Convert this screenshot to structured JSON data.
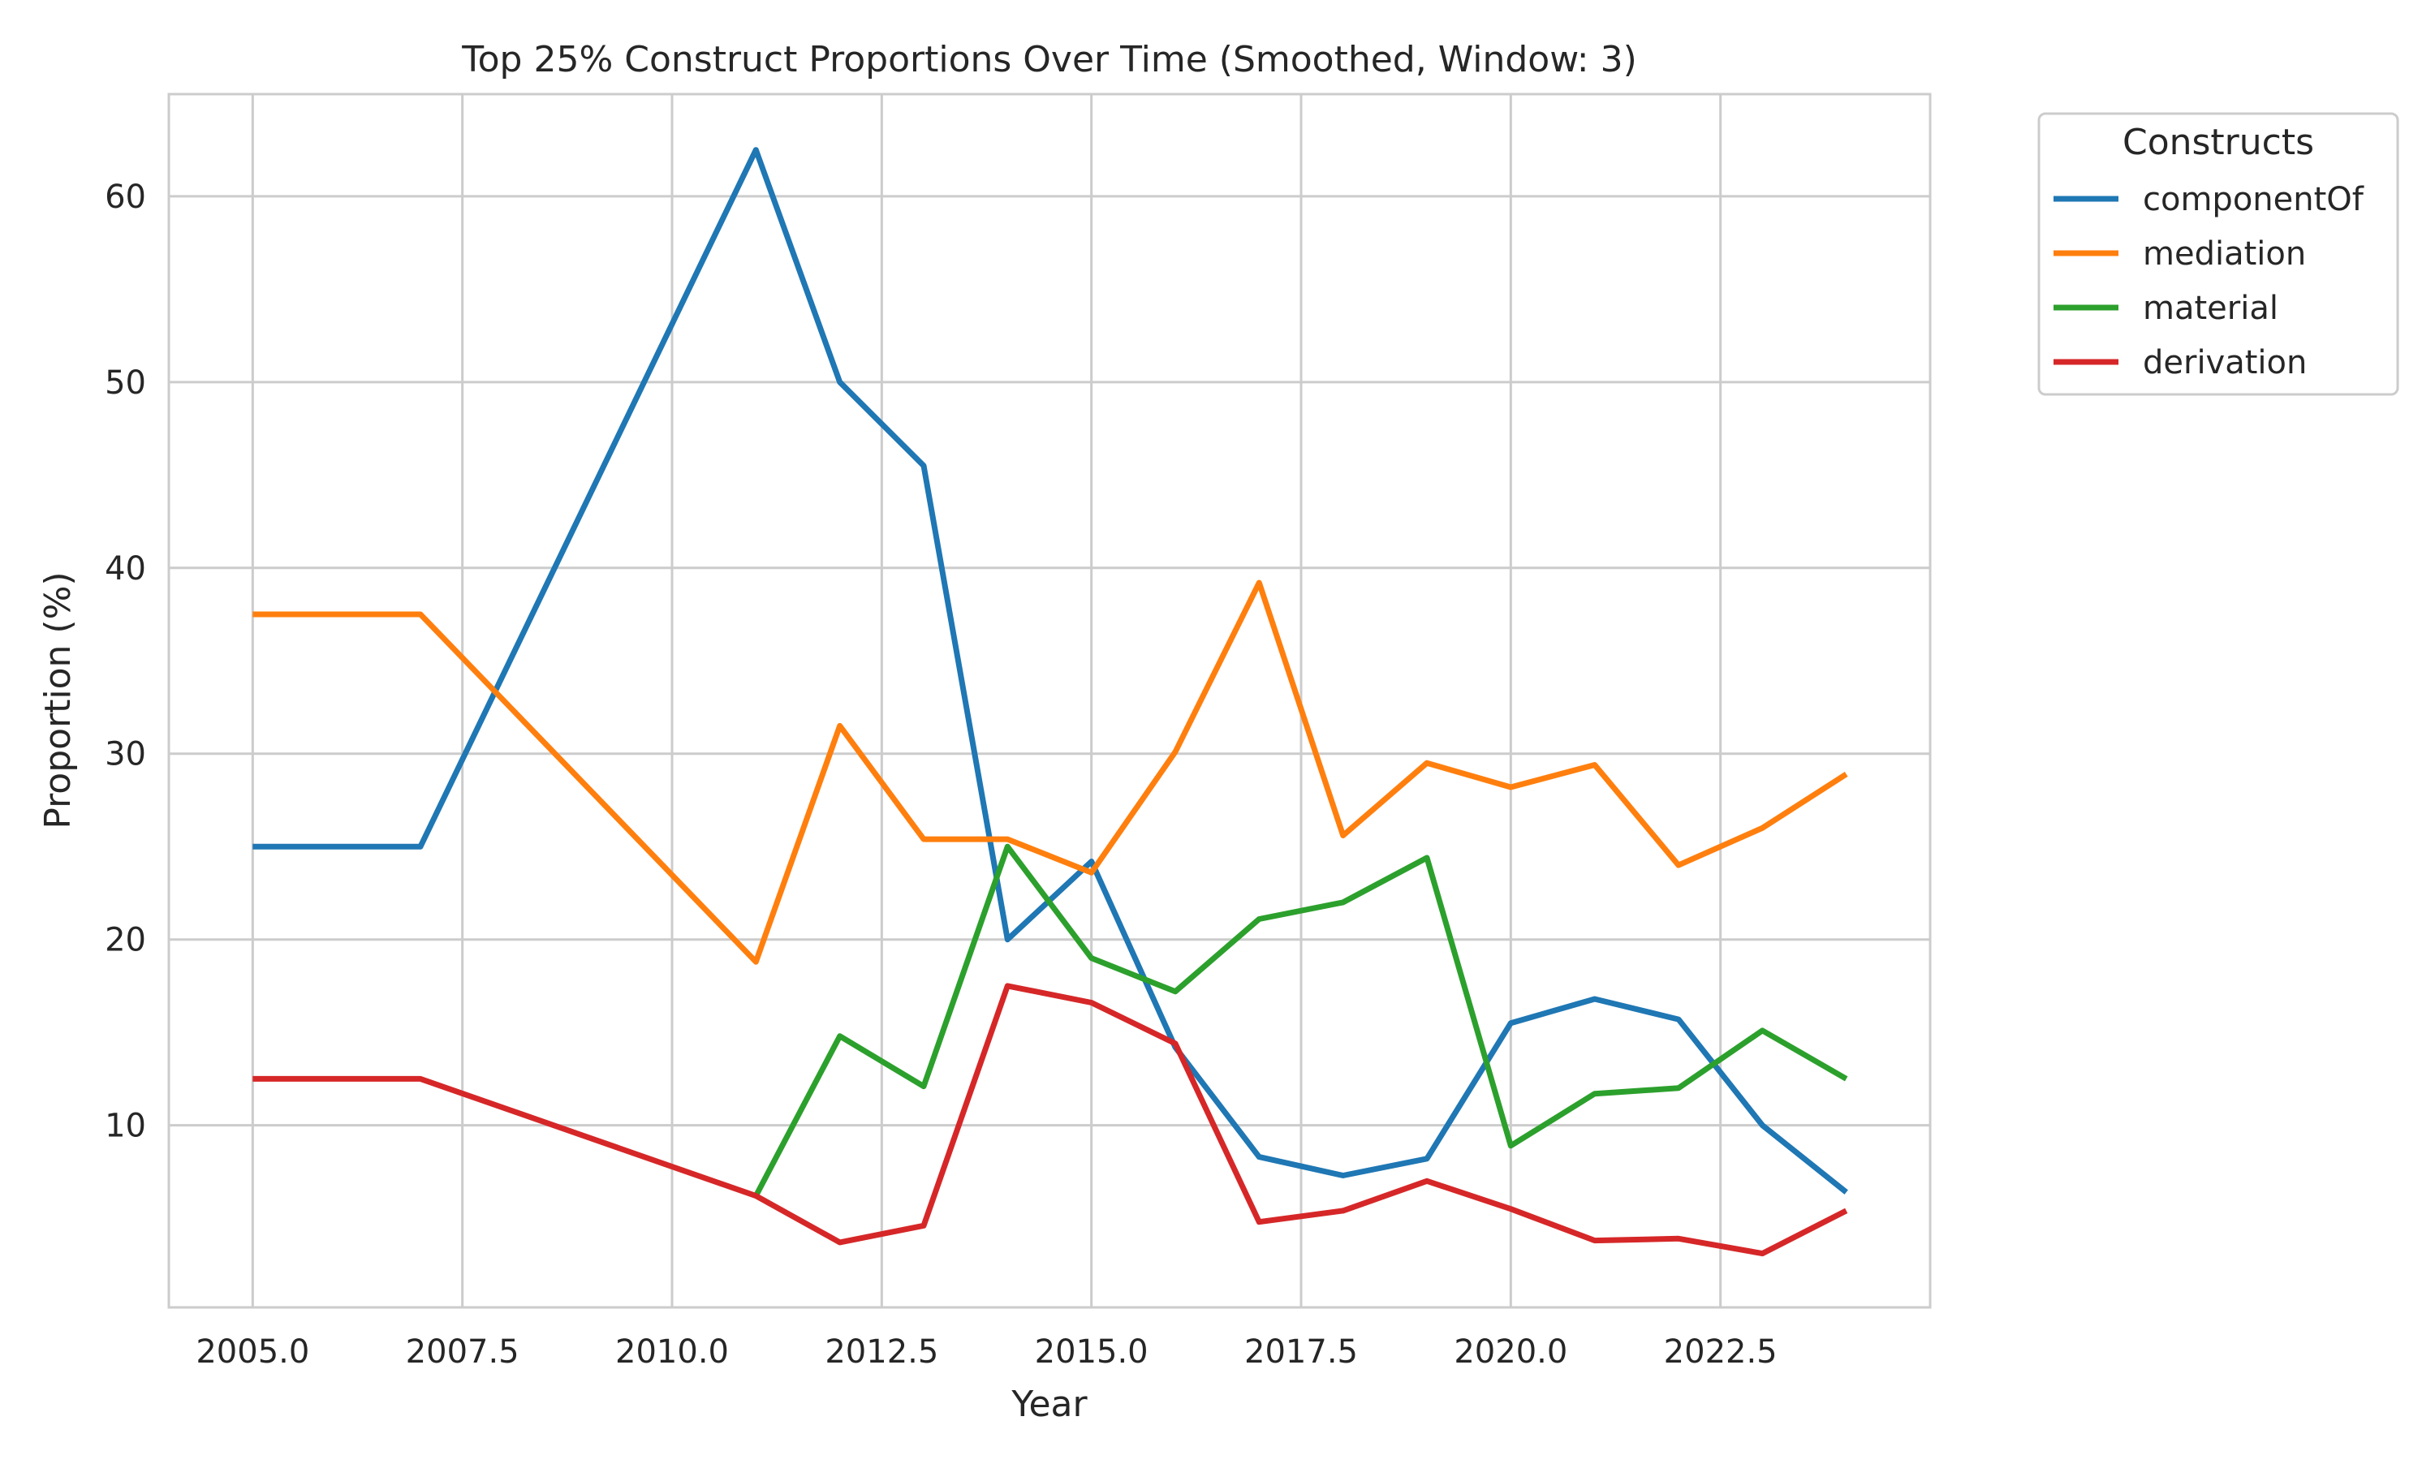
{
  "chart_data": {
    "type": "line",
    "title": "Top 25% Construct Proportions Over Time (Smoothed, Window: 3)",
    "xlabel": "Year",
    "ylabel": "Proportion (%)",
    "xlim": [
      2004.0,
      2025.0
    ],
    "ylim": [
      0.2,
      65.5
    ],
    "xticks": [
      2005.0,
      2007.5,
      2010.0,
      2012.5,
      2015.0,
      2017.5,
      2020.0,
      2022.5
    ],
    "xtick_labels": [
      "2005.0",
      "2007.5",
      "2010.0",
      "2012.5",
      "2015.0",
      "2017.5",
      "2020.0",
      "2022.5"
    ],
    "yticks": [
      10,
      20,
      30,
      40,
      50,
      60
    ],
    "ytick_labels": [
      "10",
      "20",
      "30",
      "40",
      "50",
      "60"
    ],
    "grid": true,
    "legend": {
      "title": "Constructs",
      "placement": "outside-top-right"
    },
    "series": [
      {
        "name": "componentOf",
        "color": "#1f77b4",
        "points": [
          [
            2005,
            25.0
          ],
          [
            2007,
            25.0
          ],
          [
            2011,
            62.5
          ],
          [
            2012,
            50.0
          ],
          [
            2013,
            45.5
          ],
          [
            2014,
            20.0
          ],
          [
            2015,
            24.2
          ],
          [
            2016,
            14.2
          ],
          [
            2017,
            8.3
          ],
          [
            2018,
            7.3
          ],
          [
            2019,
            8.2
          ],
          [
            2020,
            15.5
          ],
          [
            2021,
            16.8
          ],
          [
            2022,
            15.7
          ],
          [
            2023,
            10.0
          ],
          [
            2024,
            6.4
          ]
        ]
      },
      {
        "name": "mediation",
        "color": "#ff7f0e",
        "points": [
          [
            2005,
            37.5
          ],
          [
            2007,
            37.5
          ],
          [
            2011,
            18.8
          ],
          [
            2012,
            31.5
          ],
          [
            2013,
            25.4
          ],
          [
            2014,
            25.4
          ],
          [
            2015,
            23.6
          ],
          [
            2016,
            30.1
          ],
          [
            2017,
            39.2
          ],
          [
            2018,
            25.6
          ],
          [
            2019,
            29.5
          ],
          [
            2020,
            28.2
          ],
          [
            2021,
            29.4
          ],
          [
            2022,
            24.0
          ],
          [
            2023,
            26.0
          ],
          [
            2024,
            28.9
          ]
        ]
      },
      {
        "name": "material",
        "color": "#2ca02c",
        "points": [
          [
            2011,
            6.2
          ],
          [
            2012,
            14.8
          ],
          [
            2013,
            12.1
          ],
          [
            2014,
            25.0
          ],
          [
            2015,
            19.0
          ],
          [
            2016,
            17.2
          ],
          [
            2017,
            21.1
          ],
          [
            2018,
            22.0
          ],
          [
            2019,
            24.4
          ],
          [
            2020,
            8.9
          ],
          [
            2021,
            11.7
          ],
          [
            2022,
            12.0
          ],
          [
            2023,
            15.1
          ],
          [
            2024,
            12.5
          ]
        ]
      },
      {
        "name": "derivation",
        "color": "#d62728",
        "points": [
          [
            2005,
            12.5
          ],
          [
            2007,
            12.5
          ],
          [
            2011,
            6.2
          ],
          [
            2012,
            3.7
          ],
          [
            2013,
            4.6
          ],
          [
            2014,
            17.5
          ],
          [
            2015,
            16.6
          ],
          [
            2016,
            14.4
          ],
          [
            2017,
            4.8
          ],
          [
            2018,
            5.4
          ],
          [
            2019,
            7.0
          ],
          [
            2020,
            5.5
          ],
          [
            2021,
            3.8
          ],
          [
            2022,
            3.9
          ],
          [
            2023,
            3.1
          ],
          [
            2024,
            5.4
          ]
        ]
      }
    ]
  }
}
